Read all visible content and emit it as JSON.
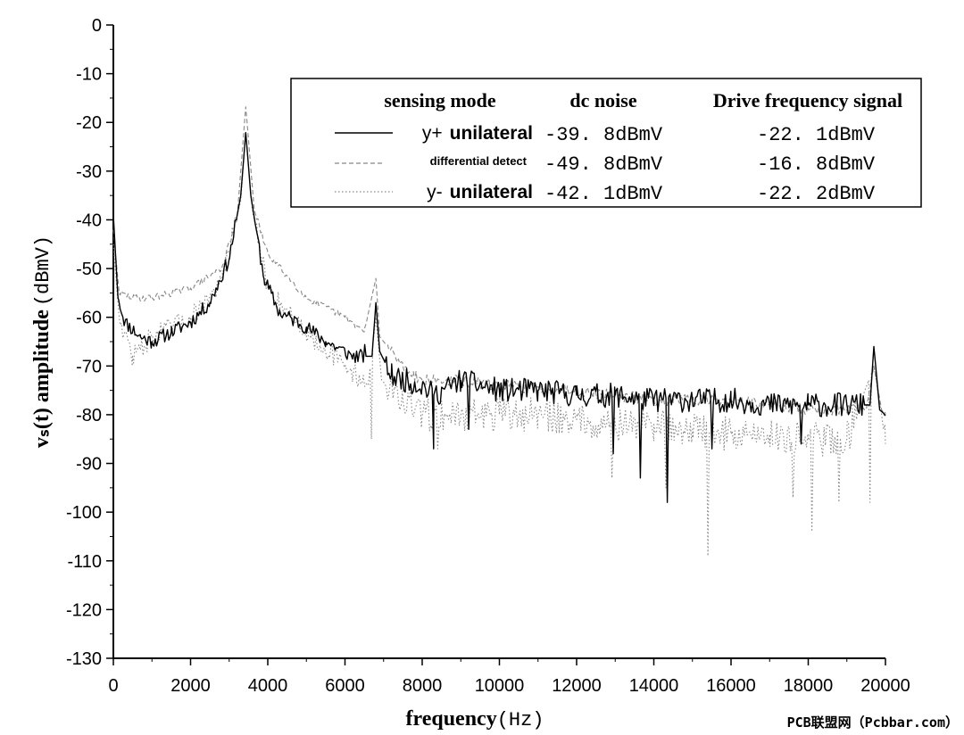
{
  "chart_data": {
    "type": "line",
    "title": "",
    "xlabel_bold": "frequency",
    "xlabel_unit": "(Hz)",
    "ylabel_bold": "vₛ(t) amplitude",
    "ylabel_unit": "(dBmV)",
    "xlim": [
      0,
      20000
    ],
    "ylim": [
      -130,
      0
    ],
    "xticks": [
      0,
      2000,
      4000,
      6000,
      8000,
      10000,
      12000,
      14000,
      16000,
      18000,
      20000
    ],
    "yticks": [
      0,
      -10,
      -20,
      -30,
      -40,
      -50,
      -60,
      -70,
      -80,
      -90,
      -100,
      -110,
      -120,
      -130
    ],
    "legend": {
      "placement": "top-right",
      "headers": [
        "sensing mode",
        "dc noise",
        "Drive frequency signal"
      ],
      "rows": [
        {
          "mode_prefix": "y+",
          "mode_bold": "unilateral",
          "dc_noise": "-39. 8dBmV",
          "drive": "-22. 1dBmV",
          "style": "solid"
        },
        {
          "mode_prefix": "",
          "mode_bold": "differential detect",
          "dc_noise": "-49. 8dBmV",
          "drive": "-16. 8dBmV",
          "style": "dashed"
        },
        {
          "mode_prefix": "y-",
          "mode_bold": "unilateral",
          "dc_noise": "-42. 1dBmV",
          "drive": "-22. 2dBmV",
          "style": "dotted"
        }
      ]
    },
    "series": [
      {
        "name": "y+ unilateral",
        "style": "solid",
        "color": "#000000",
        "base": [
          [
            0,
            -39
          ],
          [
            120,
            -56
          ],
          [
            300,
            -61
          ],
          [
            700,
            -64
          ],
          [
            1000,
            -65
          ],
          [
            1500,
            -63
          ],
          [
            2000,
            -61
          ],
          [
            2500,
            -57
          ],
          [
            3000,
            -48
          ],
          [
            3300,
            -35
          ],
          [
            3430,
            -22.1
          ],
          [
            3560,
            -35
          ],
          [
            3900,
            -52
          ],
          [
            4300,
            -59
          ],
          [
            5000,
            -62
          ],
          [
            5500,
            -65
          ],
          [
            6200,
            -68
          ],
          [
            6700,
            -68
          ],
          [
            6800,
            -57
          ],
          [
            6900,
            -67
          ],
          [
            7200,
            -72
          ],
          [
            8000,
            -74
          ],
          [
            8300,
            -76
          ],
          [
            9000,
            -73
          ],
          [
            10000,
            -75
          ],
          [
            11000,
            -75
          ],
          [
            12000,
            -76
          ],
          [
            13000,
            -76
          ],
          [
            14000,
            -77
          ],
          [
            15000,
            -77
          ],
          [
            16000,
            -77
          ],
          [
            17000,
            -78
          ],
          [
            18000,
            -78
          ],
          [
            19000,
            -78
          ],
          [
            19600,
            -78
          ],
          [
            19700,
            -66
          ],
          [
            19850,
            -79
          ],
          [
            20000,
            -80
          ]
        ],
        "spikes": [
          [
            8300,
            -87
          ],
          [
            9200,
            -83
          ],
          [
            12950,
            -88
          ],
          [
            13650,
            -93
          ],
          [
            14350,
            -98
          ],
          [
            15500,
            -87
          ],
          [
            17800,
            -86
          ]
        ],
        "seed": 11,
        "noise_amp": 2.5
      },
      {
        "name": "differential detect",
        "style": "dashed",
        "color": "#888888",
        "base": [
          [
            0,
            -42
          ],
          [
            150,
            -55
          ],
          [
            500,
            -56
          ],
          [
            1000,
            -56
          ],
          [
            2000,
            -54
          ],
          [
            2800,
            -50
          ],
          [
            3200,
            -40
          ],
          [
            3430,
            -16.8
          ],
          [
            3650,
            -38
          ],
          [
            4000,
            -47
          ],
          [
            5000,
            -56
          ],
          [
            6000,
            -60
          ],
          [
            6500,
            -63
          ],
          [
            6800,
            -52
          ],
          [
            6900,
            -64
          ],
          [
            7500,
            -70
          ],
          [
            8000,
            -73
          ],
          [
            9000,
            -73
          ],
          [
            10000,
            -74
          ],
          [
            12000,
            -75
          ],
          [
            13000,
            -76
          ],
          [
            14000,
            -77
          ],
          [
            15000,
            -77
          ],
          [
            16000,
            -77
          ],
          [
            17000,
            -78
          ],
          [
            18000,
            -79
          ],
          [
            19000,
            -79
          ],
          [
            19500,
            -79
          ],
          [
            19700,
            -70
          ],
          [
            19900,
            -79
          ],
          [
            20000,
            -80
          ]
        ],
        "spikes": [],
        "seed": 29,
        "noise_amp": 1.2
      },
      {
        "name": "y- unilateral",
        "style": "dotted",
        "color": "#888888",
        "base": [
          [
            0,
            -45
          ],
          [
            150,
            -60
          ],
          [
            500,
            -68
          ],
          [
            1000,
            -64
          ],
          [
            2000,
            -60
          ],
          [
            2800,
            -53
          ],
          [
            3300,
            -36
          ],
          [
            3430,
            -22.2
          ],
          [
            3600,
            -38
          ],
          [
            4000,
            -54
          ],
          [
            5000,
            -63
          ],
          [
            6000,
            -70
          ],
          [
            6600,
            -74
          ],
          [
            6800,
            -60
          ],
          [
            6950,
            -73
          ],
          [
            7500,
            -77
          ],
          [
            8000,
            -80
          ],
          [
            9000,
            -80
          ],
          [
            10000,
            -80
          ],
          [
            11000,
            -80
          ],
          [
            12000,
            -81
          ],
          [
            13000,
            -82
          ],
          [
            14000,
            -82
          ],
          [
            15000,
            -83
          ],
          [
            16000,
            -84
          ],
          [
            17000,
            -84
          ],
          [
            18000,
            -85
          ],
          [
            19000,
            -85
          ],
          [
            19700,
            -70
          ],
          [
            19900,
            -80
          ],
          [
            20000,
            -86
          ]
        ],
        "spikes": [
          [
            500,
            -70
          ],
          [
            6700,
            -85
          ],
          [
            8400,
            -87
          ],
          [
            12900,
            -93
          ],
          [
            14300,
            -95
          ],
          [
            15400,
            -109
          ],
          [
            17600,
            -97
          ],
          [
            18100,
            -104
          ],
          [
            18800,
            -98
          ],
          [
            19600,
            -98
          ]
        ],
        "seed": 47,
        "noise_amp": 3.5
      }
    ]
  },
  "watermark": "PCB联盟网（Pcbbar.com）"
}
